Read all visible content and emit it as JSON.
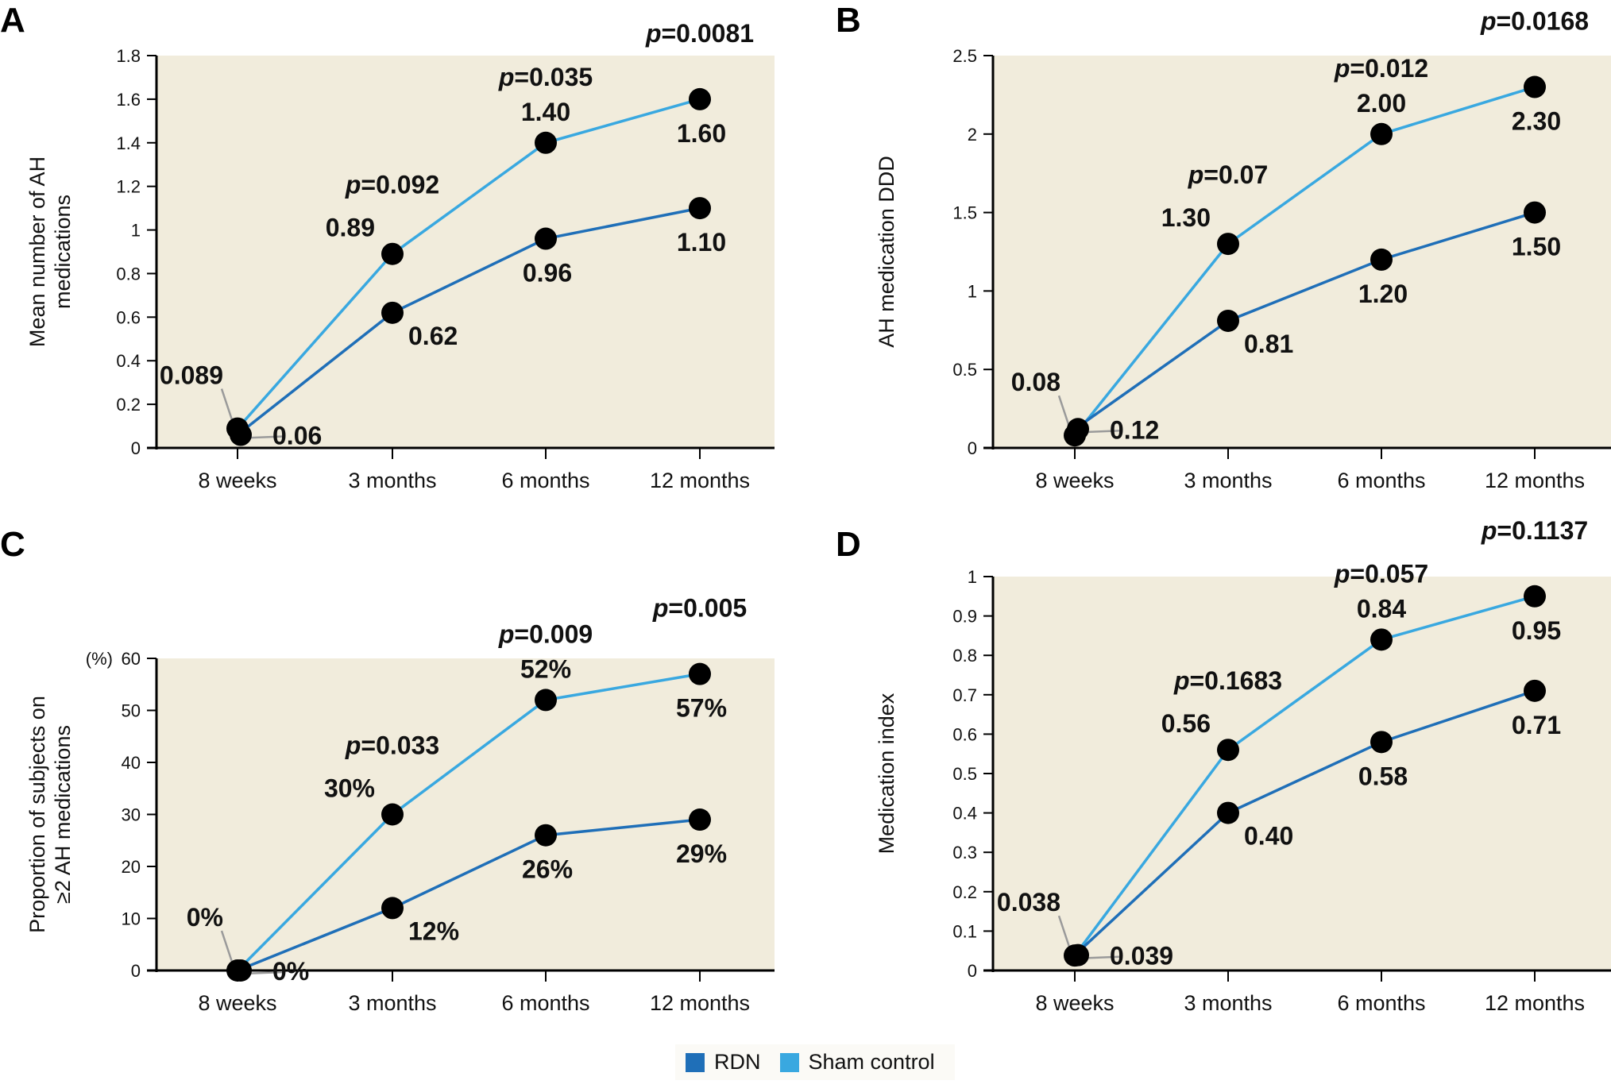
{
  "legend": {
    "items": [
      {
        "label": "RDN",
        "color": "#1f6fb8"
      },
      {
        "label": "Sham control",
        "color": "#39a8e0"
      }
    ]
  },
  "colors": {
    "plot_background": "#f1ecdc",
    "rdn_line": "#1f6fb8",
    "sham_line": "#39a8e0",
    "marker": "#000000",
    "leader_line": "#9a9a9a"
  },
  "chart_data": [
    {
      "panel": "A",
      "type": "line",
      "title": "",
      "xlabel": "",
      "ylabel": "Mean number of AH medications",
      "ylabel_lines": [
        "Mean number of AH",
        "medications"
      ],
      "y_unit_prefix": "",
      "categories": [
        "8 weeks",
        "3 months",
        "6 months",
        "12 months"
      ],
      "ylim": [
        0,
        1.8
      ],
      "yticks": [
        0,
        0.2,
        0.4,
        0.6,
        0.8,
        1,
        1.2,
        1.4,
        1.6,
        1.8
      ],
      "ytick_labels": [
        "0",
        "0.2",
        "0.4",
        "0.6",
        "0.8",
        "1",
        "1.2",
        "1.4",
        "1.6",
        "1.8"
      ],
      "grid": false,
      "series": [
        {
          "name": "RDN",
          "values": [
            0.06,
            0.62,
            0.96,
            1.1
          ],
          "labels": [
            "0.06",
            "0.62",
            "0.96",
            "1.10"
          ]
        },
        {
          "name": "Sham control",
          "values": [
            0.089,
            0.89,
            1.4,
            1.6
          ],
          "labels": [
            "0.089",
            "0.89",
            "1.40",
            "1.60"
          ]
        }
      ],
      "p_values": [
        "",
        "0.092",
        "0.035",
        "0.0081"
      ]
    },
    {
      "panel": "B",
      "type": "line",
      "title": "",
      "xlabel": "",
      "ylabel": "AH medication DDD",
      "ylabel_lines": [
        "AH medication DDD"
      ],
      "y_unit_prefix": "",
      "categories": [
        "8 weeks",
        "3 months",
        "6 months",
        "12 months"
      ],
      "ylim": [
        0,
        2.5
      ],
      "yticks": [
        0,
        0.5,
        1,
        1.5,
        2,
        2.5
      ],
      "ytick_labels": [
        "0",
        "0.5",
        "1",
        "1.5",
        "2",
        "2.5"
      ],
      "grid": false,
      "series": [
        {
          "name": "RDN",
          "values": [
            0.12,
            0.81,
            1.2,
            1.5
          ],
          "labels": [
            "0.12",
            "0.81",
            "1.20",
            "1.50"
          ]
        },
        {
          "name": "Sham control",
          "values": [
            0.08,
            1.3,
            2.0,
            2.3
          ],
          "labels": [
            "0.08",
            "1.30",
            "2.00",
            "2.30"
          ]
        }
      ],
      "p_values": [
        "",
        "0.07",
        "0.012",
        "0.0168"
      ]
    },
    {
      "panel": "C",
      "type": "line",
      "title": "",
      "xlabel": "",
      "ylabel": "Proportion of subjects on ≥2 AH medications",
      "ylabel_lines": [
        "Proportion of subjects on",
        "≥2 AH medications"
      ],
      "y_unit_prefix": "(%)",
      "categories": [
        "8 weeks",
        "3 months",
        "6 months",
        "12 months"
      ],
      "ylim": [
        0,
        60
      ],
      "yticks": [
        0,
        10,
        20,
        30,
        40,
        50,
        60
      ],
      "ytick_labels": [
        "0",
        "10",
        "20",
        "30",
        "40",
        "50",
        "60"
      ],
      "grid": false,
      "series": [
        {
          "name": "RDN",
          "values": [
            0,
            12,
            26,
            29
          ],
          "labels": [
            "0%",
            "12%",
            "26%",
            "29%"
          ]
        },
        {
          "name": "Sham control",
          "values": [
            0,
            30,
            52,
            57
          ],
          "labels": [
            "0%",
            "30%",
            "52%",
            "57%"
          ]
        }
      ],
      "p_values": [
        "",
        "0.033",
        "0.009",
        "0.005"
      ]
    },
    {
      "panel": "D",
      "type": "line",
      "title": "",
      "xlabel": "",
      "ylabel": "Medication index",
      "ylabel_lines": [
        "Medication index"
      ],
      "y_unit_prefix": "",
      "categories": [
        "8 weeks",
        "3 months",
        "6 months",
        "12 months"
      ],
      "ylim": [
        0,
        1
      ],
      "yticks": [
        0,
        0.1,
        0.2,
        0.3,
        0.4,
        0.5,
        0.6,
        0.7,
        0.8,
        0.9,
        1
      ],
      "ytick_labels": [
        "0",
        "0.1",
        "0.2",
        "0.3",
        "0.4",
        "0.5",
        "0.6",
        "0.7",
        "0.8",
        "0.9",
        "1"
      ],
      "grid": false,
      "series": [
        {
          "name": "RDN",
          "values": [
            0.039,
            0.4,
            0.58,
            0.71
          ],
          "labels": [
            "0.039",
            "0.40",
            "0.58",
            "0.71"
          ]
        },
        {
          "name": "Sham control",
          "values": [
            0.038,
            0.56,
            0.84,
            0.95
          ],
          "labels": [
            "0.038",
            "0.56",
            "0.84",
            "0.95"
          ]
        }
      ],
      "p_values": [
        "",
        "0.1683",
        "0.057",
        "0.1137"
      ]
    }
  ]
}
